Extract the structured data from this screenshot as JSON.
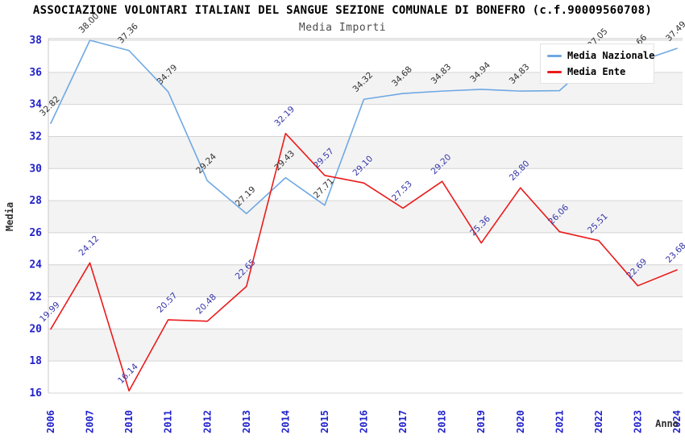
{
  "chart_data": {
    "type": "line",
    "title": "ASSOCIAZIONE VOLONTARI ITALIANI DEL SANGUE SEZIONE COMUNALE DI BONEFRO (c.f.90009560708)",
    "subtitle": "Media Importi",
    "xlabel": "Anno",
    "ylabel": "Media",
    "ylim": [
      16,
      38
    ],
    "ytick_step": 2,
    "grid": "horizontal-gridlines-with-alternating-bands",
    "legend_position": "top-right-inside",
    "categories": [
      "2006",
      "2007",
      "2010",
      "2011",
      "2012",
      "2013",
      "2014",
      "2015",
      "2016",
      "2017",
      "2018",
      "2019",
      "2020",
      "2021",
      "2022",
      "2023",
      "2024"
    ],
    "series": [
      {
        "name": "Media Nazionale",
        "color": "#6FA8E3",
        "label_color": "#303030",
        "values": [
          32.82,
          38.0,
          37.36,
          34.79,
          29.24,
          27.19,
          29.43,
          27.71,
          34.32,
          34.68,
          34.83,
          34.94,
          34.83,
          34.86,
          37.05,
          36.66,
          37.49
        ]
      },
      {
        "name": "Media Ente",
        "color": "#EA1B1B",
        "label_color": "#3333AA",
        "values": [
          19.99,
          24.12,
          16.14,
          20.57,
          20.48,
          22.65,
          32.19,
          29.57,
          29.1,
          27.53,
          29.2,
          25.36,
          28.8,
          26.06,
          25.51,
          22.69,
          23.68
        ]
      }
    ],
    "colors": {
      "axis_tick_text": "#2222CC",
      "axis_title_text": "#303030",
      "gridline": "#D4D4D4",
      "band_fill": "#F3F3F3",
      "plot_border": "#C8C8C8"
    }
  }
}
